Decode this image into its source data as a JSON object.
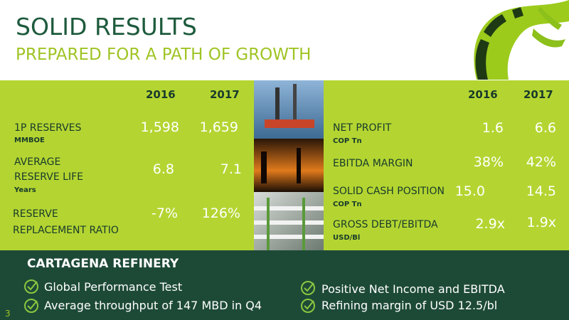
{
  "header": {
    "title": "SOLID RESULTS",
    "subtitle": "PREPARED FOR A PATH OF GROWTH"
  },
  "left_table": {
    "columns": [
      "2016",
      "2017"
    ],
    "rows": [
      {
        "label": [
          "1P RESERVES"
        ],
        "unit": "MMBOE",
        "values": [
          "1,598",
          "1,659"
        ]
      },
      {
        "label": [
          "AVERAGE",
          "RESERVE LIFE"
        ],
        "unit": "Years",
        "values": [
          "6.8",
          "7.1"
        ]
      },
      {
        "label": [
          "RESERVE",
          "REPLACEMENT RATIO"
        ],
        "values": [
          "-7%",
          "126%"
        ]
      }
    ]
  },
  "right_table": {
    "columns": [
      "2016",
      "2017"
    ],
    "rows": [
      {
        "label": [
          "NET PROFIT"
        ],
        "unit": "COP Tn",
        "values": [
          "1.6",
          "6.6"
        ]
      },
      {
        "label": [
          "EBITDA MARGIN"
        ],
        "values": [
          "38%",
          "42%"
        ]
      },
      {
        "label": [
          "SOLID CASH POSITION"
        ],
        "unit": "COP Tn",
        "values": [
          "15.0",
          "14.5"
        ]
      },
      {
        "label": [
          "GROSS DEBT/EBITDA"
        ],
        "unit": "USD/Bl",
        "values": [
          "2.9x",
          "1.9x"
        ]
      }
    ]
  },
  "refinery": {
    "title": "CARTAGENA REFINERY",
    "bullets_left": [
      "Global Performance Test",
      "Average throughput of 147 MBD in Q4"
    ],
    "bullets_right": [
      "Positive Net Income and EBITDA",
      "Refining margin of USD 12.5/bl"
    ]
  },
  "page_number": "3"
}
